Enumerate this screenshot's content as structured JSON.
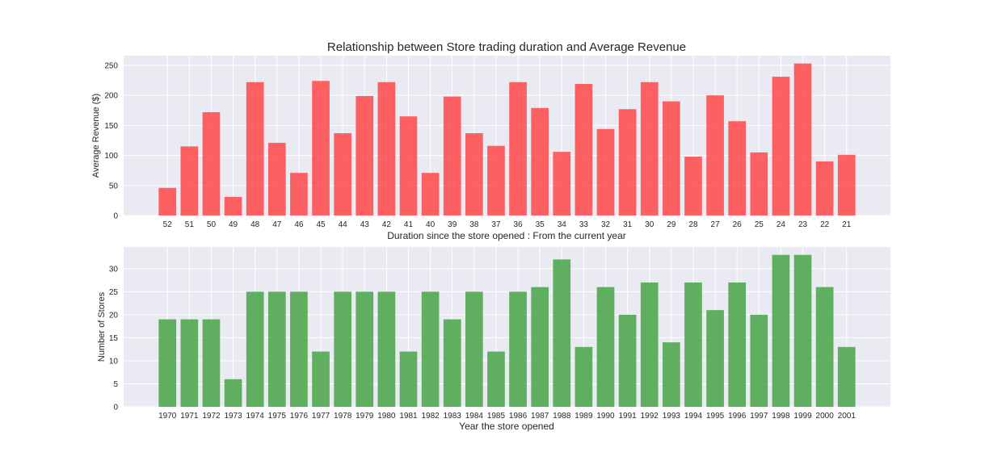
{
  "chart_data": [
    {
      "type": "bar",
      "title": "Relationship between Store trading duration and Average Revenue",
      "xlabel": "Duration since the store opened : From the current year",
      "ylabel": "Average Revenue ($)",
      "ylim": [
        0,
        266
      ],
      "yticks": [
        0,
        50,
        100,
        150,
        200,
        250
      ],
      "grid": true,
      "color": "#ff4c4f",
      "categories": [
        "52",
        "51",
        "50",
        "49",
        "48",
        "47",
        "46",
        "45",
        "44",
        "43",
        "42",
        "41",
        "40",
        "39",
        "38",
        "37",
        "36",
        "35",
        "34",
        "33",
        "32",
        "31",
        "30",
        "29",
        "28",
        "27",
        "26",
        "25",
        "24",
        "23",
        "22",
        "21"
      ],
      "values": [
        46,
        115,
        172,
        31,
        222,
        121,
        71,
        224,
        137,
        199,
        222,
        165,
        71,
        198,
        137,
        116,
        222,
        179,
        106,
        219,
        144,
        177,
        222,
        190,
        98,
        200,
        157,
        105,
        231,
        253,
        90,
        101
      ]
    },
    {
      "type": "bar",
      "title": "",
      "xlabel": "Year the store opened",
      "ylabel": "Number of Stores",
      "ylim": [
        0,
        34.7
      ],
      "yticks": [
        0,
        5,
        10,
        15,
        20,
        25,
        30
      ],
      "grid": true,
      "color": "#4ca64c",
      "categories": [
        "1970",
        "1971",
        "1972",
        "1973",
        "1974",
        "1975",
        "1976",
        "1977",
        "1978",
        "1979",
        "1980",
        "1981",
        "1982",
        "1983",
        "1984",
        "1985",
        "1986",
        "1987",
        "1988",
        "1989",
        "1990",
        "1991",
        "1992",
        "1993",
        "1994",
        "1995",
        "1996",
        "1997",
        "1998",
        "1999",
        "2000",
        "2001"
      ],
      "values": [
        19,
        19,
        19,
        6,
        25,
        25,
        25,
        12,
        25,
        25,
        25,
        12,
        25,
        19,
        25,
        12,
        25,
        26,
        32,
        13,
        26,
        20,
        27,
        14,
        27,
        21,
        27,
        20,
        33,
        33,
        26,
        13
      ]
    }
  ]
}
